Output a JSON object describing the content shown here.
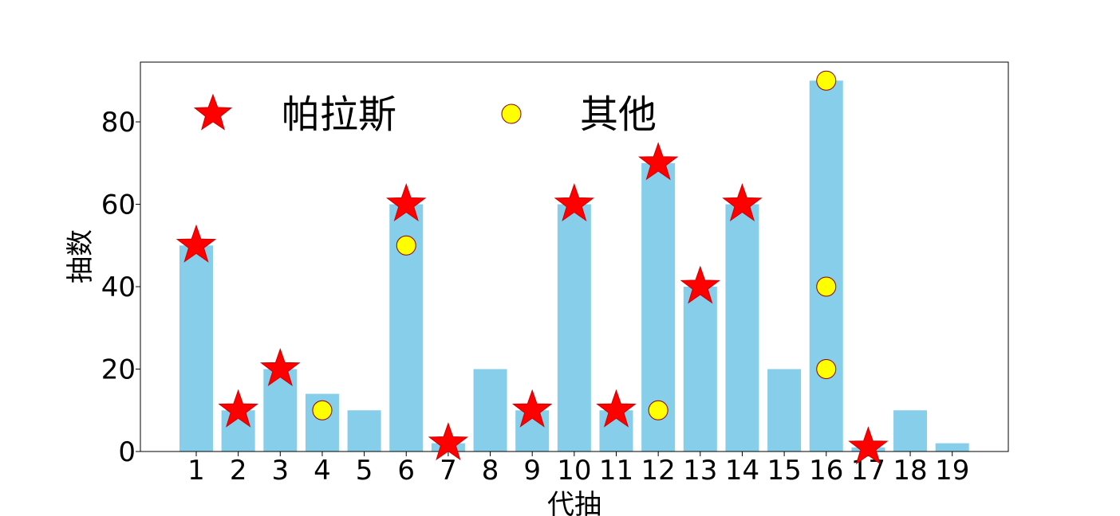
{
  "chart_data": {
    "type": "bar",
    "xlabel": "代抽",
    "ylabel": "抽数",
    "categories": [
      "1",
      "2",
      "3",
      "4",
      "5",
      "6",
      "7",
      "8",
      "9",
      "10",
      "11",
      "12",
      "13",
      "14",
      "15",
      "16",
      "17",
      "18",
      "19"
    ],
    "values": [
      50,
      10,
      20,
      14,
      10,
      60,
      2,
      20,
      10,
      60,
      10,
      70,
      40,
      60,
      20,
      90,
      1,
      10,
      2
    ],
    "ylim": [
      0,
      94.5
    ],
    "yticks": [
      0,
      20,
      40,
      60,
      80
    ],
    "bar_color": "#87ceeb",
    "grid": false,
    "legend_position": "top-left",
    "markers": [
      {
        "name": "帕拉斯",
        "shape": "star",
        "color": "#ff0000",
        "points": [
          {
            "x": "1",
            "y": 50
          },
          {
            "x": "2",
            "y": 10
          },
          {
            "x": "3",
            "y": 20
          },
          {
            "x": "6",
            "y": 60
          },
          {
            "x": "7",
            "y": 2
          },
          {
            "x": "9",
            "y": 10
          },
          {
            "x": "10",
            "y": 60
          },
          {
            "x": "11",
            "y": 10
          },
          {
            "x": "12",
            "y": 70
          },
          {
            "x": "13",
            "y": 40
          },
          {
            "x": "14",
            "y": 60
          },
          {
            "x": "17",
            "y": 1
          }
        ]
      },
      {
        "name": "其他",
        "shape": "circle",
        "color": "#ffff00",
        "edge_color": "#8b0000",
        "points": [
          {
            "x": "4",
            "y": 10
          },
          {
            "x": "6",
            "y": 50
          },
          {
            "x": "12",
            "y": 10
          },
          {
            "x": "16",
            "y": 90
          },
          {
            "x": "16",
            "y": 40
          },
          {
            "x": "16",
            "y": 20
          }
        ]
      }
    ]
  }
}
